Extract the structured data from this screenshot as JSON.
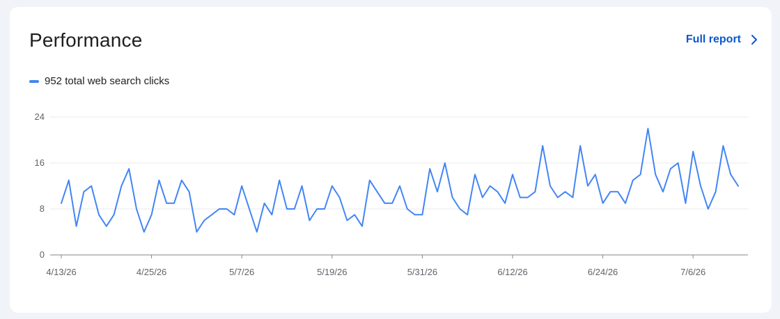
{
  "header": {
    "title": "Performance",
    "full_report_label": "Full report"
  },
  "legend": {
    "label": "952 total web search clicks",
    "color": "#4285f4"
  },
  "icons": {
    "full_report": "chevron-right-icon"
  },
  "chart_data": {
    "type": "line",
    "title": "",
    "xlabel": "",
    "ylabel": "",
    "ylim": [
      0,
      24
    ],
    "y_ticks": [
      0,
      8,
      16,
      24
    ],
    "grid": true,
    "x_start": "4/13/26",
    "x_ticks": [
      {
        "label": "4/13/26",
        "index": 0
      },
      {
        "label": "4/25/26",
        "index": 12
      },
      {
        "label": "5/7/26",
        "index": 24
      },
      {
        "label": "5/19/26",
        "index": 36
      },
      {
        "label": "5/31/26",
        "index": 48
      },
      {
        "label": "6/12/26",
        "index": 60
      },
      {
        "label": "6/24/26",
        "index": 72
      },
      {
        "label": "7/6/26",
        "index": 84
      }
    ],
    "series": [
      {
        "name": "952 total web search clicks",
        "color": "#4285f4",
        "values": [
          9,
          13,
          5,
          11,
          12,
          7,
          5,
          7,
          12,
          15,
          8,
          4,
          7,
          13,
          9,
          9,
          13,
          11,
          4,
          6,
          7,
          8,
          8,
          7,
          12,
          8,
          4,
          9,
          7,
          13,
          8,
          8,
          12,
          6,
          8,
          8,
          12,
          10,
          6,
          7,
          5,
          13,
          11,
          9,
          9,
          12,
          8,
          7,
          7,
          15,
          11,
          16,
          10,
          8,
          7,
          14,
          10,
          12,
          11,
          9,
          14,
          10,
          10,
          11,
          19,
          12,
          10,
          11,
          10,
          19,
          12,
          14,
          9,
          11,
          11,
          9,
          13,
          14,
          22,
          14,
          11,
          15,
          16,
          9,
          18,
          12,
          8,
          11,
          19,
          14,
          12
        ]
      }
    ]
  }
}
